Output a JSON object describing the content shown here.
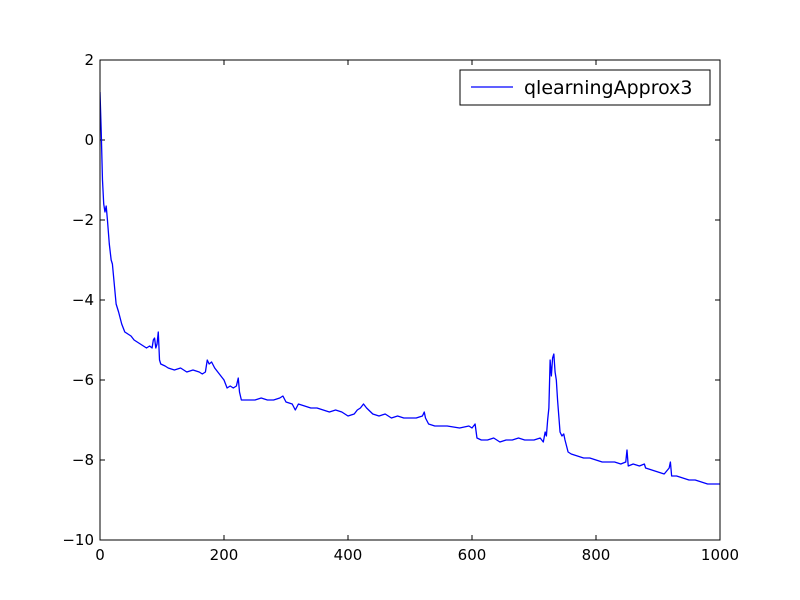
{
  "chart_data": {
    "type": "line",
    "title": "",
    "xlabel": "",
    "ylabel": "",
    "xlim": [
      0,
      1000
    ],
    "ylim": [
      -10,
      2
    ],
    "x_ticks": [
      0,
      200,
      400,
      600,
      800,
      1000
    ],
    "y_ticks": [
      2,
      0,
      -2,
      -4,
      -6,
      -8,
      -10
    ],
    "x_tick_labels": [
      "0",
      "200",
      "400",
      "600",
      "800",
      "1000"
    ],
    "y_tick_labels": [
      "2",
      "0",
      "−2",
      "−4",
      "−6",
      "−8",
      "−10"
    ],
    "grid": false,
    "legend_position": "top-right",
    "series": [
      {
        "name": "qlearningApprox3",
        "color": "#0000ff",
        "points": [
          [
            0,
            1.2
          ],
          [
            2,
            0.2
          ],
          [
            4,
            -1.0
          ],
          [
            6,
            -1.6
          ],
          [
            8,
            -1.8
          ],
          [
            10,
            -1.65
          ],
          [
            12,
            -2.0
          ],
          [
            15,
            -2.6
          ],
          [
            18,
            -3.0
          ],
          [
            20,
            -3.1
          ],
          [
            23,
            -3.6
          ],
          [
            26,
            -4.1
          ],
          [
            30,
            -4.3
          ],
          [
            35,
            -4.6
          ],
          [
            40,
            -4.8
          ],
          [
            45,
            -4.85
          ],
          [
            50,
            -4.9
          ],
          [
            55,
            -5.0
          ],
          [
            60,
            -5.05
          ],
          [
            65,
            -5.1
          ],
          [
            70,
            -5.15
          ],
          [
            75,
            -5.2
          ],
          [
            80,
            -5.15
          ],
          [
            84,
            -5.2
          ],
          [
            86,
            -5.0
          ],
          [
            88,
            -4.95
          ],
          [
            90,
            -5.2
          ],
          [
            92,
            -5.1
          ],
          [
            94,
            -4.8
          ],
          [
            96,
            -5.5
          ],
          [
            98,
            -5.6
          ],
          [
            105,
            -5.65
          ],
          [
            110,
            -5.7
          ],
          [
            120,
            -5.75
          ],
          [
            130,
            -5.7
          ],
          [
            140,
            -5.8
          ],
          [
            150,
            -5.75
          ],
          [
            160,
            -5.8
          ],
          [
            165,
            -5.85
          ],
          [
            170,
            -5.8
          ],
          [
            173,
            -5.5
          ],
          [
            176,
            -5.6
          ],
          [
            180,
            -5.55
          ],
          [
            185,
            -5.7
          ],
          [
            190,
            -5.8
          ],
          [
            195,
            -5.9
          ],
          [
            200,
            -6.0
          ],
          [
            205,
            -6.2
          ],
          [
            210,
            -6.15
          ],
          [
            215,
            -6.2
          ],
          [
            220,
            -6.15
          ],
          [
            223,
            -5.95
          ],
          [
            225,
            -6.3
          ],
          [
            228,
            -6.5
          ],
          [
            235,
            -6.5
          ],
          [
            250,
            -6.5
          ],
          [
            260,
            -6.45
          ],
          [
            270,
            -6.5
          ],
          [
            280,
            -6.5
          ],
          [
            290,
            -6.45
          ],
          [
            295,
            -6.4
          ],
          [
            300,
            -6.55
          ],
          [
            310,
            -6.6
          ],
          [
            315,
            -6.75
          ],
          [
            320,
            -6.6
          ],
          [
            330,
            -6.65
          ],
          [
            340,
            -6.7
          ],
          [
            350,
            -6.7
          ],
          [
            360,
            -6.75
          ],
          [
            370,
            -6.8
          ],
          [
            380,
            -6.75
          ],
          [
            390,
            -6.8
          ],
          [
            400,
            -6.9
          ],
          [
            410,
            -6.85
          ],
          [
            415,
            -6.75
          ],
          [
            420,
            -6.7
          ],
          [
            425,
            -6.6
          ],
          [
            430,
            -6.7
          ],
          [
            440,
            -6.85
          ],
          [
            450,
            -6.9
          ],
          [
            460,
            -6.85
          ],
          [
            470,
            -6.95
          ],
          [
            480,
            -6.9
          ],
          [
            490,
            -6.95
          ],
          [
            500,
            -6.95
          ],
          [
            510,
            -6.95
          ],
          [
            520,
            -6.9
          ],
          [
            523,
            -6.8
          ],
          [
            525,
            -6.95
          ],
          [
            530,
            -7.1
          ],
          [
            540,
            -7.15
          ],
          [
            560,
            -7.15
          ],
          [
            580,
            -7.2
          ],
          [
            595,
            -7.15
          ],
          [
            600,
            -7.2
          ],
          [
            605,
            -7.1
          ],
          [
            608,
            -7.45
          ],
          [
            615,
            -7.5
          ],
          [
            625,
            -7.5
          ],
          [
            635,
            -7.45
          ],
          [
            645,
            -7.55
          ],
          [
            655,
            -7.5
          ],
          [
            665,
            -7.5
          ],
          [
            675,
            -7.45
          ],
          [
            685,
            -7.5
          ],
          [
            700,
            -7.5
          ],
          [
            710,
            -7.45
          ],
          [
            715,
            -7.55
          ],
          [
            718,
            -7.3
          ],
          [
            720,
            -7.4
          ],
          [
            722,
            -7.0
          ],
          [
            724,
            -6.7
          ],
          [
            726,
            -5.5
          ],
          [
            728,
            -5.9
          ],
          [
            730,
            -5.45
          ],
          [
            732,
            -5.35
          ],
          [
            734,
            -5.8
          ],
          [
            736,
            -6.0
          ],
          [
            738,
            -6.5
          ],
          [
            740,
            -6.9
          ],
          [
            742,
            -7.3
          ],
          [
            745,
            -7.4
          ],
          [
            748,
            -7.35
          ],
          [
            750,
            -7.5
          ],
          [
            755,
            -7.8
          ],
          [
            760,
            -7.85
          ],
          [
            770,
            -7.9
          ],
          [
            780,
            -7.95
          ],
          [
            790,
            -7.95
          ],
          [
            800,
            -8.0
          ],
          [
            810,
            -8.05
          ],
          [
            820,
            -8.05
          ],
          [
            830,
            -8.05
          ],
          [
            840,
            -8.1
          ],
          [
            848,
            -8.05
          ],
          [
            850,
            -7.75
          ],
          [
            852,
            -8.15
          ],
          [
            860,
            -8.1
          ],
          [
            870,
            -8.15
          ],
          [
            878,
            -8.1
          ],
          [
            880,
            -8.2
          ],
          [
            890,
            -8.25
          ],
          [
            900,
            -8.3
          ],
          [
            910,
            -8.35
          ],
          [
            918,
            -8.2
          ],
          [
            920,
            -8.05
          ],
          [
            922,
            -8.4
          ],
          [
            930,
            -8.4
          ],
          [
            940,
            -8.45
          ],
          [
            950,
            -8.5
          ],
          [
            960,
            -8.5
          ],
          [
            970,
            -8.55
          ],
          [
            980,
            -8.6
          ],
          [
            990,
            -8.6
          ],
          [
            1000,
            -8.6
          ]
        ]
      }
    ]
  }
}
